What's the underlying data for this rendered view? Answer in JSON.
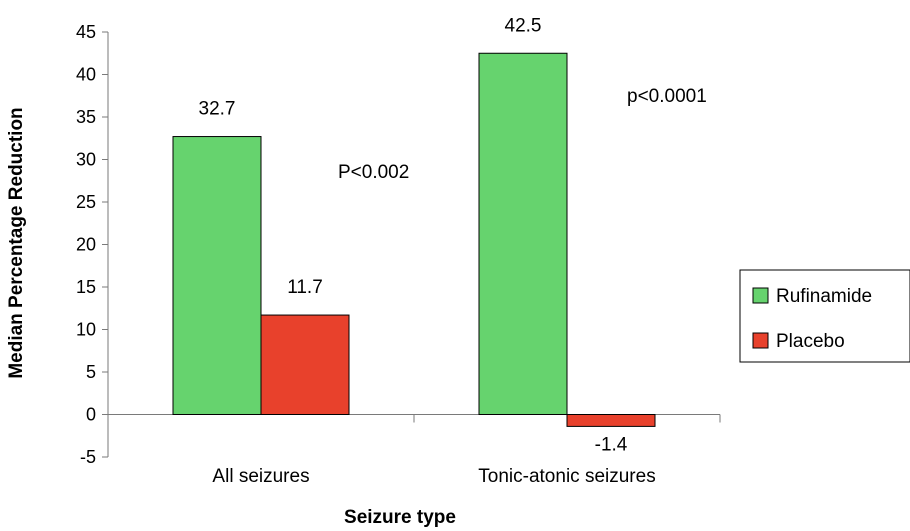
{
  "chart_data": {
    "type": "bar",
    "title": "",
    "xlabel": "Seizure type",
    "ylabel": "Median Percentage Reduction",
    "ylim": [
      -5,
      45
    ],
    "yticks": [
      -5,
      0,
      5,
      10,
      15,
      20,
      25,
      30,
      35,
      40,
      45
    ],
    "grid": false,
    "legend_position": "right",
    "categories": [
      "All seizures",
      "Tonic-atonic  seizures"
    ],
    "series": [
      {
        "name": "Rufinamide",
        "values": [
          32.7,
          42.5
        ],
        "labels": [
          "32.7",
          "42.5"
        ],
        "color": "#66d36e"
      },
      {
        "name": "Placebo",
        "values": [
          11.7,
          -1.4
        ],
        "labels": [
          "11.7",
          "-1.4"
        ],
        "color": "#e8412c"
      }
    ],
    "annotations": [
      "P<0.002",
      "p<0.0001"
    ]
  }
}
